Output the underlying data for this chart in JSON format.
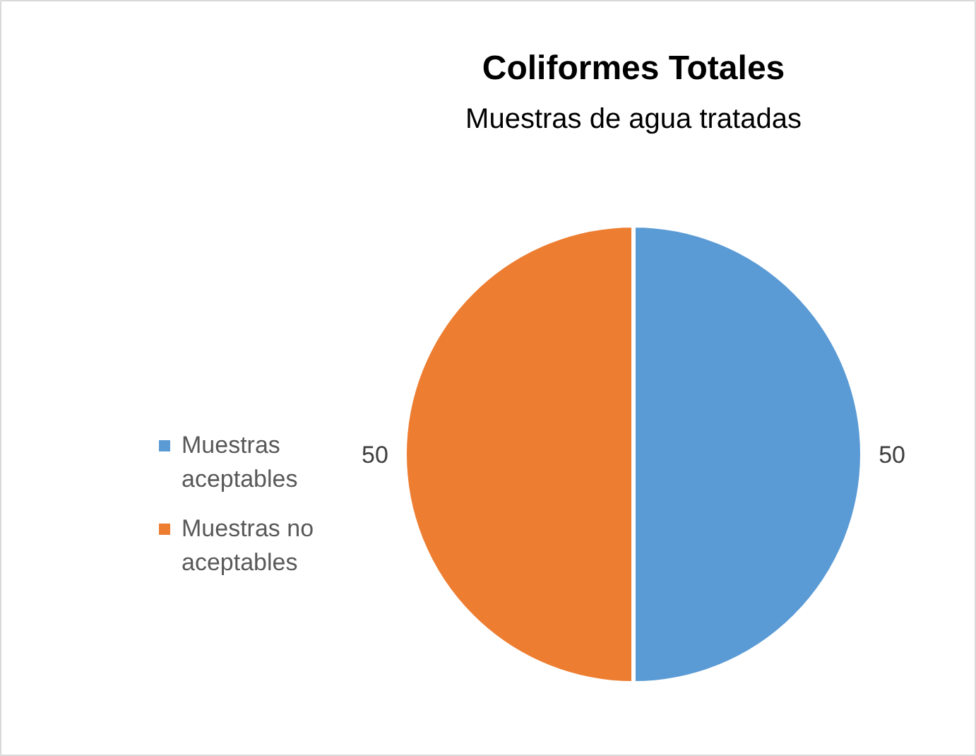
{
  "chart_data": {
    "type": "pie",
    "title": "Coliformes Totales",
    "subtitle": "Muestras de agua tratadas",
    "categories": [
      "Muestras aceptables",
      "Muestras no aceptables"
    ],
    "values": [
      50,
      50
    ],
    "colors": [
      "#5b9bd5",
      "#ed7d31"
    ],
    "data_labels": true,
    "legend": "left"
  }
}
